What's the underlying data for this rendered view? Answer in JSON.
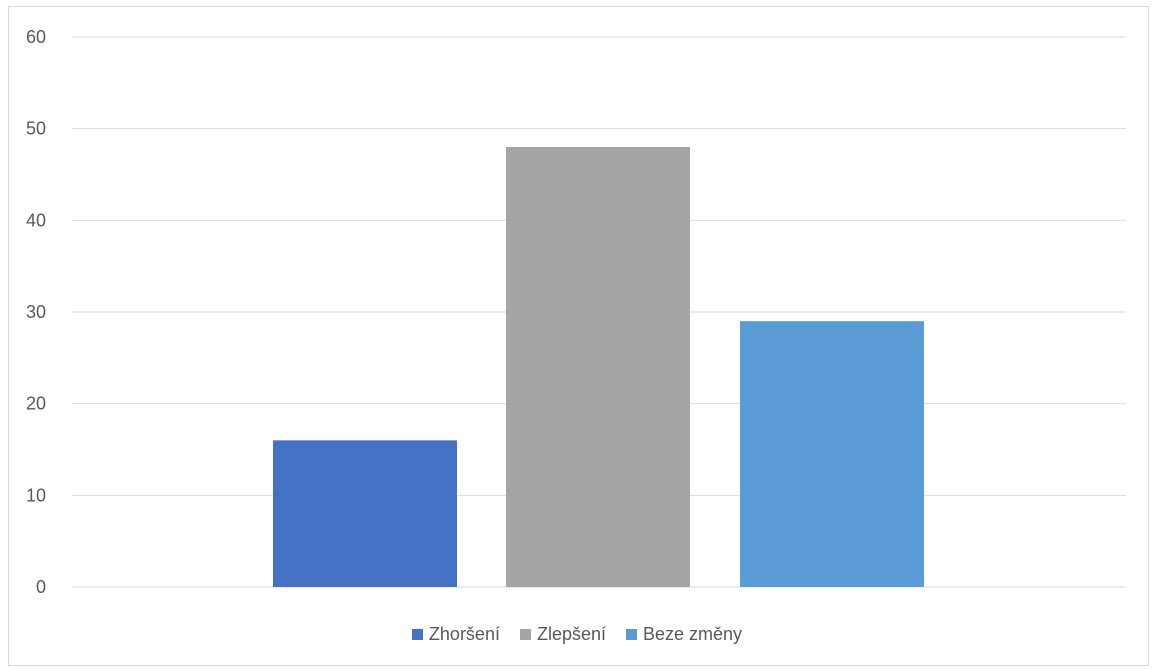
{
  "chart_data": {
    "type": "bar",
    "categories": [
      "Zhoršení",
      "Zlepšení",
      "Beze změny"
    ],
    "values": [
      16,
      48,
      29
    ],
    "ylim": [
      0,
      60
    ],
    "yticks": [
      0,
      10,
      20,
      30,
      40,
      50,
      60
    ],
    "grid": true,
    "legend_position": "bottom",
    "title": "",
    "xlabel": "",
    "ylabel": ""
  },
  "colors": {
    "bars": [
      "#4472C4",
      "#A5A5A5",
      "#5B9BD5"
    ],
    "grid": "#d9d9d9",
    "text": "#595959"
  },
  "legend": {
    "items": [
      "Zhoršení",
      "Zlepšení",
      "Beze změny"
    ]
  }
}
